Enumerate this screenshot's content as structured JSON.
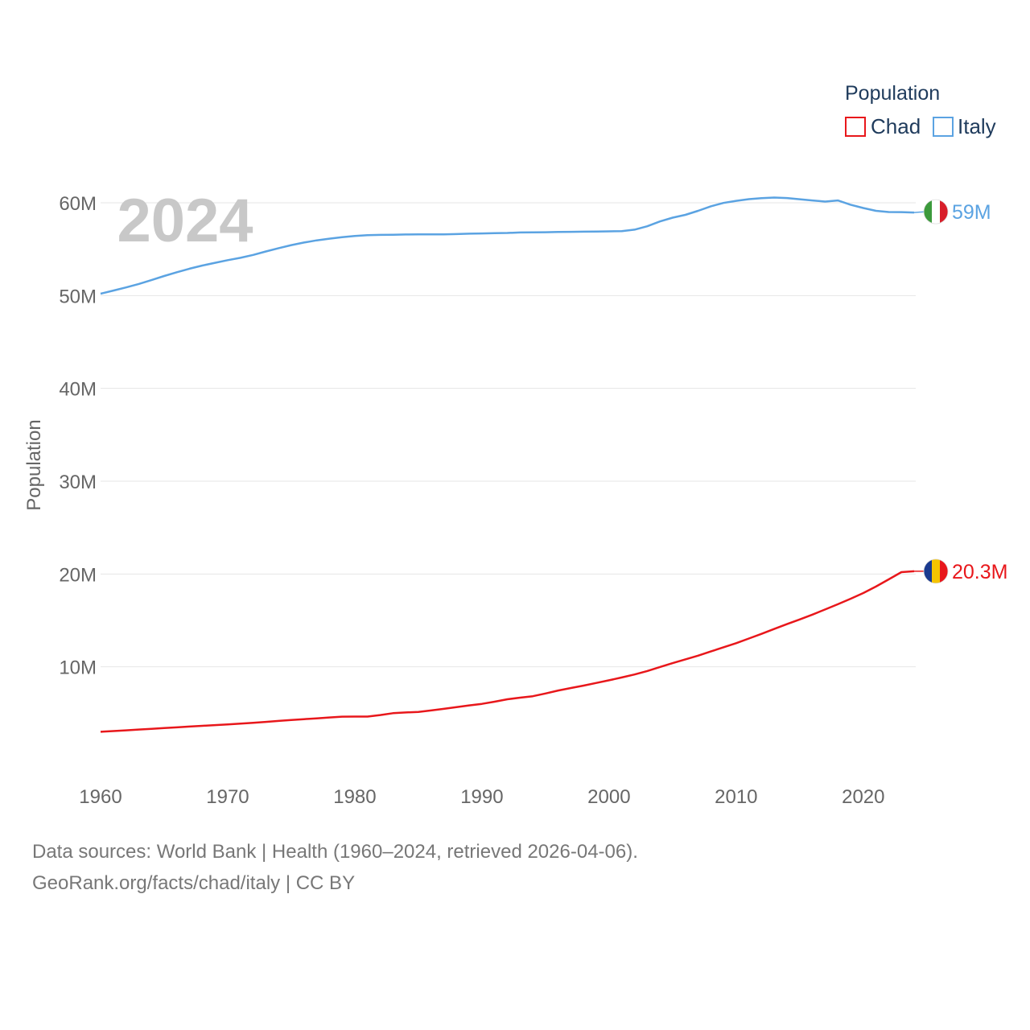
{
  "chart_data": {
    "type": "line",
    "title": "2024",
    "xlabel": "",
    "ylabel": "Population",
    "xlim": [
      1960,
      2024
    ],
    "ylim": [
      0,
      65000000
    ],
    "x_ticks": [
      1960,
      1970,
      1980,
      1990,
      2000,
      2010,
      2020
    ],
    "y_ticks": [
      {
        "value": 10000000,
        "label": "10M"
      },
      {
        "value": 20000000,
        "label": "20M"
      },
      {
        "value": 30000000,
        "label": "30M"
      },
      {
        "value": 40000000,
        "label": "40M"
      },
      {
        "value": 50000000,
        "label": "50M"
      },
      {
        "value": 60000000,
        "label": "60M"
      }
    ],
    "legend": {
      "title": "Population",
      "position": "top-right"
    },
    "x": [
      1960,
      1961,
      1962,
      1963,
      1964,
      1965,
      1966,
      1967,
      1968,
      1969,
      1970,
      1971,
      1972,
      1973,
      1974,
      1975,
      1976,
      1977,
      1978,
      1979,
      1980,
      1981,
      1982,
      1983,
      1984,
      1985,
      1986,
      1987,
      1988,
      1989,
      1990,
      1991,
      1992,
      1993,
      1994,
      1995,
      1996,
      1997,
      1998,
      1999,
      2000,
      2001,
      2002,
      2003,
      2004,
      2005,
      2006,
      2007,
      2008,
      2009,
      2010,
      2011,
      2012,
      2013,
      2014,
      2015,
      2016,
      2017,
      2018,
      2019,
      2020,
      2021,
      2022,
      2023,
      2024
    ],
    "series": [
      {
        "name": "Chad",
        "color": "#e8171b",
        "end_label": "20.3M",
        "flag": "chad-flag",
        "values": [
          3000000,
          3080000,
          3160000,
          3240000,
          3320000,
          3400000,
          3480000,
          3560000,
          3640000,
          3720000,
          3800000,
          3880000,
          3970000,
          4070000,
          4170000,
          4270000,
          4360000,
          4450000,
          4540000,
          4630000,
          4640000,
          4640000,
          4800000,
          5000000,
          5080000,
          5140000,
          5300000,
          5470000,
          5650000,
          5840000,
          6010000,
          6240000,
          6500000,
          6680000,
          6830000,
          7130000,
          7450000,
          7720000,
          7980000,
          8260000,
          8550000,
          8850000,
          9170000,
          9550000,
          9980000,
          10400000,
          10800000,
          11200000,
          11650000,
          12100000,
          12550000,
          13050000,
          13550000,
          14080000,
          14600000,
          15100000,
          15620000,
          16180000,
          16740000,
          17330000,
          17950000,
          18650000,
          19420000,
          20200000,
          20300000
        ]
      },
      {
        "name": "Italy",
        "color": "#5ba3e2",
        "end_label": "59M",
        "flag": "italy-flag",
        "values": [
          50200000,
          50540000,
          50880000,
          51250000,
          51670000,
          52110000,
          52520000,
          52900000,
          53240000,
          53530000,
          53820000,
          54070000,
          54380000,
          54750000,
          55110000,
          55440000,
          55720000,
          55950000,
          56130000,
          56300000,
          56430000,
          56510000,
          56540000,
          56560000,
          56580000,
          56590000,
          56600000,
          56600000,
          56630000,
          56670000,
          56700000,
          56730000,
          56750000,
          56800000,
          56820000,
          56830000,
          56850000,
          56870000,
          56890000,
          56900000,
          56920000,
          56940000,
          57100000,
          57470000,
          57990000,
          58400000,
          58700000,
          59130000,
          59620000,
          59980000,
          60210000,
          60390000,
          60500000,
          60560000,
          60510000,
          60380000,
          60250000,
          60130000,
          60250000,
          59790000,
          59440000,
          59130000,
          59000000,
          58990000,
          58950000
        ]
      }
    ]
  },
  "footer": {
    "sources": "Data sources: World Bank | Health (1960–2024, retrieved 2026-04-06).",
    "credit": "GeoRank.org/facts/chad/italy | CC BY"
  }
}
